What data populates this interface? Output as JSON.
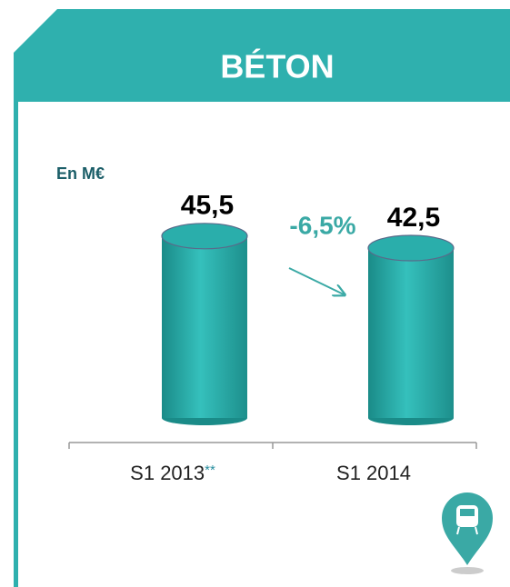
{
  "chart_data": {
    "type": "bar",
    "title": "BÉTON",
    "unit_label": "En M€",
    "categories": [
      "S1 2013",
      "S1 2014"
    ],
    "category_marks": [
      "**",
      null
    ],
    "values": [
      45.5,
      42.5
    ],
    "value_labels": [
      "45,5",
      "42,5"
    ],
    "annotation": "-6,5%",
    "color": "#2aaeab",
    "header_color": "#2fb0ae"
  }
}
